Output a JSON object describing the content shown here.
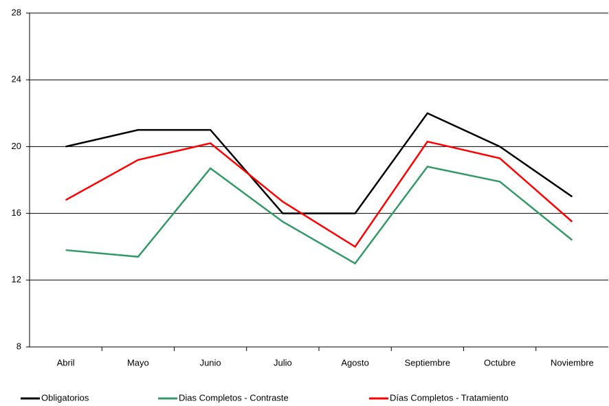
{
  "chart_data": {
    "type": "line",
    "categories": [
      "Abril",
      "Mayo",
      "Junio",
      "Julio",
      "Agosto",
      "Septiembre",
      "Octubre",
      "Noviembre"
    ],
    "series": [
      {
        "name": "Obligatorios",
        "color": "#000000",
        "values": [
          20,
          21,
          21,
          16,
          16,
          22,
          20,
          17
        ]
      },
      {
        "name": "Dias Completos - Contraste",
        "color": "#339966",
        "values": [
          13.8,
          13.4,
          18.7,
          15.5,
          13.0,
          18.8,
          17.9,
          14.4
        ]
      },
      {
        "name": "Días Completos - Tratamiento",
        "color": "#ff0000",
        "values": [
          16.8,
          19.2,
          20.2,
          16.7,
          14.0,
          20.3,
          19.3,
          15.5
        ]
      }
    ],
    "ylim": [
      8,
      28
    ],
    "yticks": [
      8,
      12,
      16,
      20,
      24,
      28
    ],
    "grid": true,
    "legend": "bottom"
  }
}
